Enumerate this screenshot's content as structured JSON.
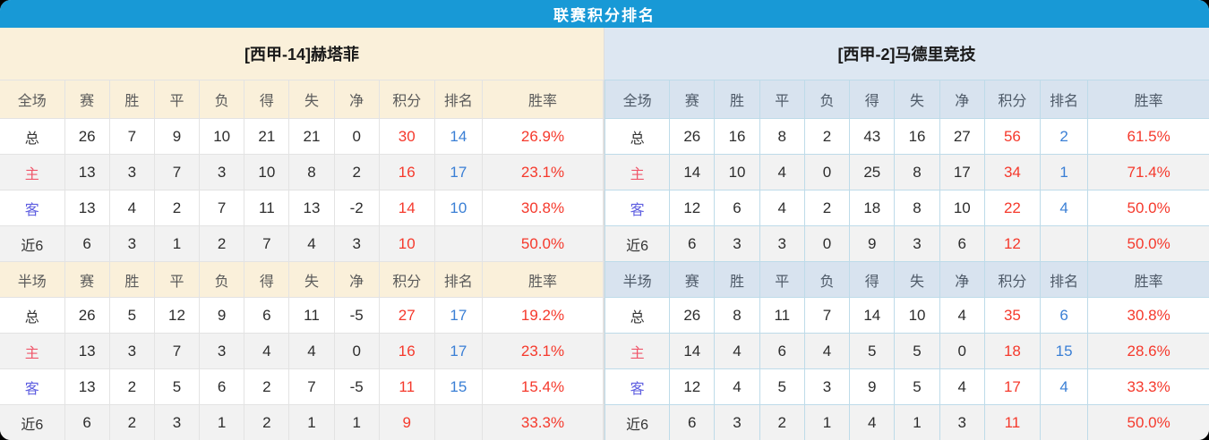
{
  "title": "联赛积分排名",
  "columns": [
    "赛",
    "胜",
    "平",
    "负",
    "得",
    "失",
    "净",
    "积分",
    "排名",
    "胜率"
  ],
  "colors": {
    "title_bar": "#1899d6",
    "left_theme_cream": "#faf0da",
    "right_theme_blue": "#d8e3ef",
    "points_red": "#f5392c",
    "rank_blue": "#3a7fd5",
    "home_label_red": "#f0566a",
    "away_label_blue": "#5e5ee0"
  },
  "tables": [
    {
      "team": "[西甲-14]赫塔菲",
      "theme": "left",
      "sections": [
        {
          "label": "全场",
          "rows": [
            [
              "总",
              "26",
              "7",
              "9",
              "10",
              "21",
              "21",
              "0",
              "30",
              "14",
              "26.9%"
            ],
            [
              "主",
              "13",
              "3",
              "7",
              "3",
              "10",
              "8",
              "2",
              "16",
              "17",
              "23.1%"
            ],
            [
              "客",
              "13",
              "4",
              "2",
              "7",
              "11",
              "13",
              "-2",
              "14",
              "10",
              "30.8%"
            ],
            [
              "近6",
              "6",
              "3",
              "1",
              "2",
              "7",
              "4",
              "3",
              "10",
              "",
              "50.0%"
            ]
          ]
        },
        {
          "label": "半场",
          "rows": [
            [
              "总",
              "26",
              "5",
              "12",
              "9",
              "6",
              "11",
              "-5",
              "27",
              "17",
              "19.2%"
            ],
            [
              "主",
              "13",
              "3",
              "7",
              "3",
              "4",
              "4",
              "0",
              "16",
              "17",
              "23.1%"
            ],
            [
              "客",
              "13",
              "2",
              "5",
              "6",
              "2",
              "7",
              "-5",
              "11",
              "15",
              "15.4%"
            ],
            [
              "近6",
              "6",
              "2",
              "3",
              "1",
              "2",
              "1",
              "1",
              "9",
              "",
              "33.3%"
            ]
          ]
        }
      ]
    },
    {
      "team": "[西甲-2]马德里竞技",
      "theme": "right",
      "sections": [
        {
          "label": "全场",
          "rows": [
            [
              "总",
              "26",
              "16",
              "8",
              "2",
              "43",
              "16",
              "27",
              "56",
              "2",
              "61.5%"
            ],
            [
              "主",
              "14",
              "10",
              "4",
              "0",
              "25",
              "8",
              "17",
              "34",
              "1",
              "71.4%"
            ],
            [
              "客",
              "12",
              "6",
              "4",
              "2",
              "18",
              "8",
              "10",
              "22",
              "4",
              "50.0%"
            ],
            [
              "近6",
              "6",
              "3",
              "3",
              "0",
              "9",
              "3",
              "6",
              "12",
              "",
              "50.0%"
            ]
          ]
        },
        {
          "label": "半场",
          "rows": [
            [
              "总",
              "26",
              "8",
              "11",
              "7",
              "14",
              "10",
              "4",
              "35",
              "6",
              "30.8%"
            ],
            [
              "主",
              "14",
              "4",
              "6",
              "4",
              "5",
              "5",
              "0",
              "18",
              "15",
              "28.6%"
            ],
            [
              "客",
              "12",
              "4",
              "5",
              "3",
              "9",
              "5",
              "4",
              "17",
              "4",
              "33.3%"
            ],
            [
              "近6",
              "6",
              "3",
              "2",
              "1",
              "4",
              "1",
              "3",
              "11",
              "",
              "50.0%"
            ]
          ]
        }
      ]
    }
  ]
}
